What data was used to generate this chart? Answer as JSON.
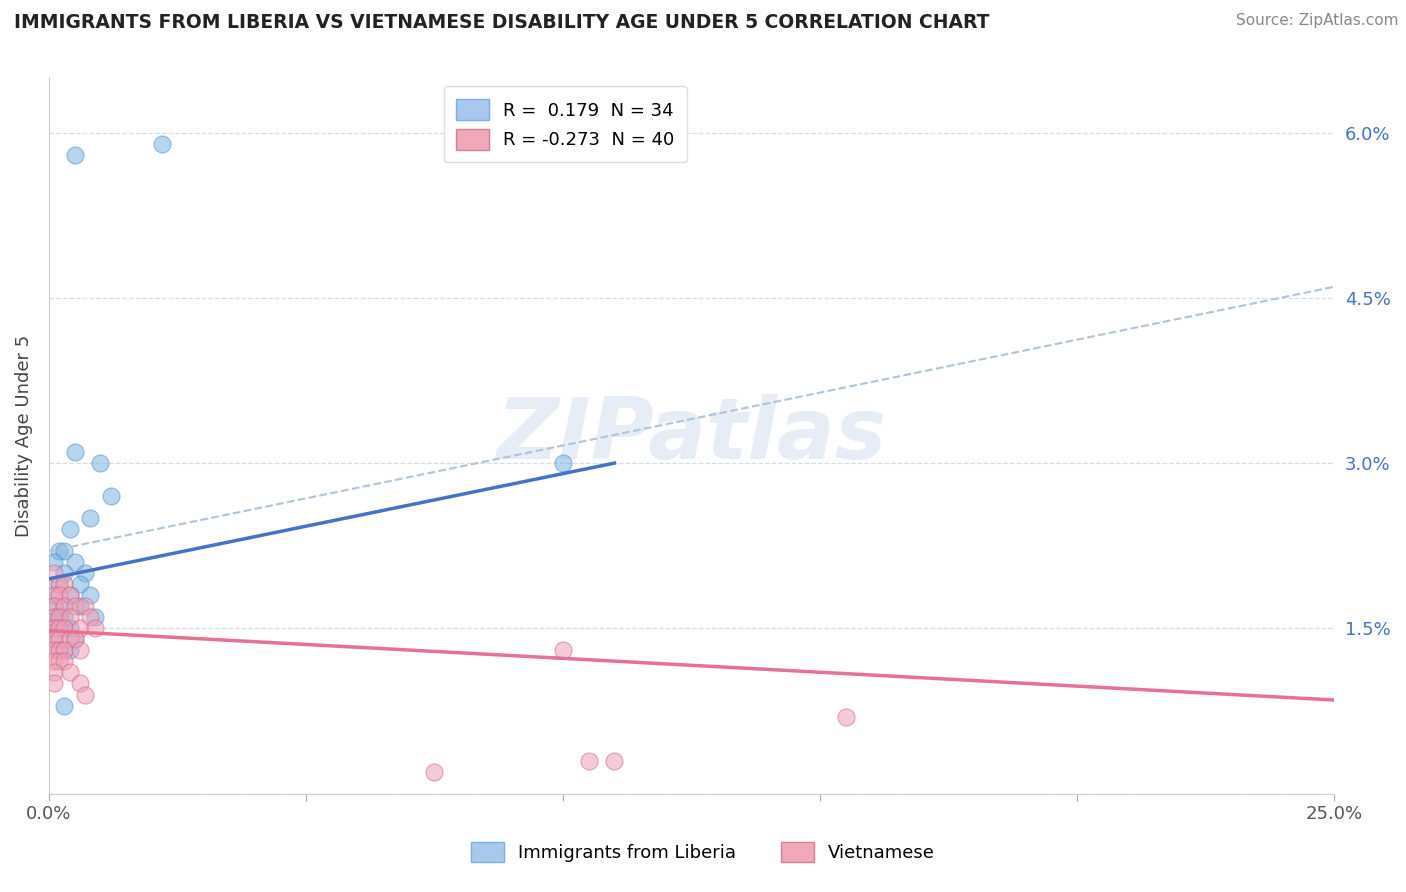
{
  "title": "IMMIGRANTS FROM LIBERIA VS VIETNAMESE DISABILITY AGE UNDER 5 CORRELATION CHART",
  "source": "Source: ZipAtlas.com",
  "ylabel": "Disability Age Under 5",
  "xlim": [
    0,
    0.25
  ],
  "ylim": [
    0,
    0.065
  ],
  "xticks": [
    0.0,
    0.05,
    0.1,
    0.15,
    0.2,
    0.25
  ],
  "yticks": [
    0.0,
    0.015,
    0.03,
    0.045,
    0.06
  ],
  "watermark": "ZIPatlas",
  "blue_scatter": [
    [
      0.005,
      0.058
    ],
    [
      0.022,
      0.059
    ],
    [
      0.005,
      0.031
    ],
    [
      0.01,
      0.03
    ],
    [
      0.012,
      0.027
    ],
    [
      0.008,
      0.025
    ],
    [
      0.004,
      0.024
    ],
    [
      0.002,
      0.022
    ],
    [
      0.003,
      0.022
    ],
    [
      0.001,
      0.021
    ],
    [
      0.005,
      0.021
    ],
    [
      0.003,
      0.02
    ],
    [
      0.007,
      0.02
    ],
    [
      0.002,
      0.019
    ],
    [
      0.006,
      0.019
    ],
    [
      0.001,
      0.018
    ],
    [
      0.004,
      0.018
    ],
    [
      0.008,
      0.018
    ],
    [
      0.001,
      0.017
    ],
    [
      0.003,
      0.017
    ],
    [
      0.006,
      0.017
    ],
    [
      0.001,
      0.016
    ],
    [
      0.002,
      0.016
    ],
    [
      0.003,
      0.016
    ],
    [
      0.009,
      0.016
    ],
    [
      0.001,
      0.015
    ],
    [
      0.002,
      0.015
    ],
    [
      0.004,
      0.015
    ],
    [
      0.001,
      0.014
    ],
    [
      0.005,
      0.014
    ],
    [
      0.002,
      0.013
    ],
    [
      0.004,
      0.013
    ],
    [
      0.1,
      0.03
    ],
    [
      0.003,
      0.008
    ]
  ],
  "pink_scatter": [
    [
      0.001,
      0.02
    ],
    [
      0.002,
      0.019
    ],
    [
      0.003,
      0.019
    ],
    [
      0.001,
      0.018
    ],
    [
      0.002,
      0.018
    ],
    [
      0.004,
      0.018
    ],
    [
      0.001,
      0.017
    ],
    [
      0.003,
      0.017
    ],
    [
      0.005,
      0.017
    ],
    [
      0.007,
      0.017
    ],
    [
      0.001,
      0.016
    ],
    [
      0.002,
      0.016
    ],
    [
      0.004,
      0.016
    ],
    [
      0.008,
      0.016
    ],
    [
      0.001,
      0.015
    ],
    [
      0.002,
      0.015
    ],
    [
      0.003,
      0.015
    ],
    [
      0.006,
      0.015
    ],
    [
      0.009,
      0.015
    ],
    [
      0.001,
      0.014
    ],
    [
      0.002,
      0.014
    ],
    [
      0.004,
      0.014
    ],
    [
      0.005,
      0.014
    ],
    [
      0.001,
      0.013
    ],
    [
      0.002,
      0.013
    ],
    [
      0.003,
      0.013
    ],
    [
      0.006,
      0.013
    ],
    [
      0.001,
      0.012
    ],
    [
      0.002,
      0.012
    ],
    [
      0.003,
      0.012
    ],
    [
      0.001,
      0.011
    ],
    [
      0.004,
      0.011
    ],
    [
      0.001,
      0.01
    ],
    [
      0.006,
      0.01
    ],
    [
      0.007,
      0.009
    ],
    [
      0.1,
      0.013
    ],
    [
      0.155,
      0.007
    ],
    [
      0.105,
      0.003
    ],
    [
      0.11,
      0.003
    ],
    [
      0.075,
      0.002
    ]
  ],
  "blue_line": {
    "x0": 0.0,
    "y0": 0.0195,
    "x1": 0.11,
    "y1": 0.03
  },
  "blue_dashed_line": {
    "x0": 0.0,
    "y0": 0.022,
    "x1": 0.25,
    "y1": 0.046
  },
  "pink_line": {
    "x0": 0.0,
    "y0": 0.0148,
    "x1": 0.25,
    "y1": 0.0085
  },
  "blue_color": "#7ab3e0",
  "pink_color": "#f0a0b8",
  "blue_line_color": "#4472c4",
  "pink_line_color": "#e87090",
  "dashed_line_color": "#b0c4d8",
  "grid_color": "#d0d8e8",
  "title_color": "#222222",
  "label_color": "#4472c4",
  "legend_r1": "R =  0.179  N = 34",
  "legend_r2": "R = -0.273  N = 40",
  "legend_label1": "Immigrants from Liberia",
  "legend_label2": "Vietnamese"
}
